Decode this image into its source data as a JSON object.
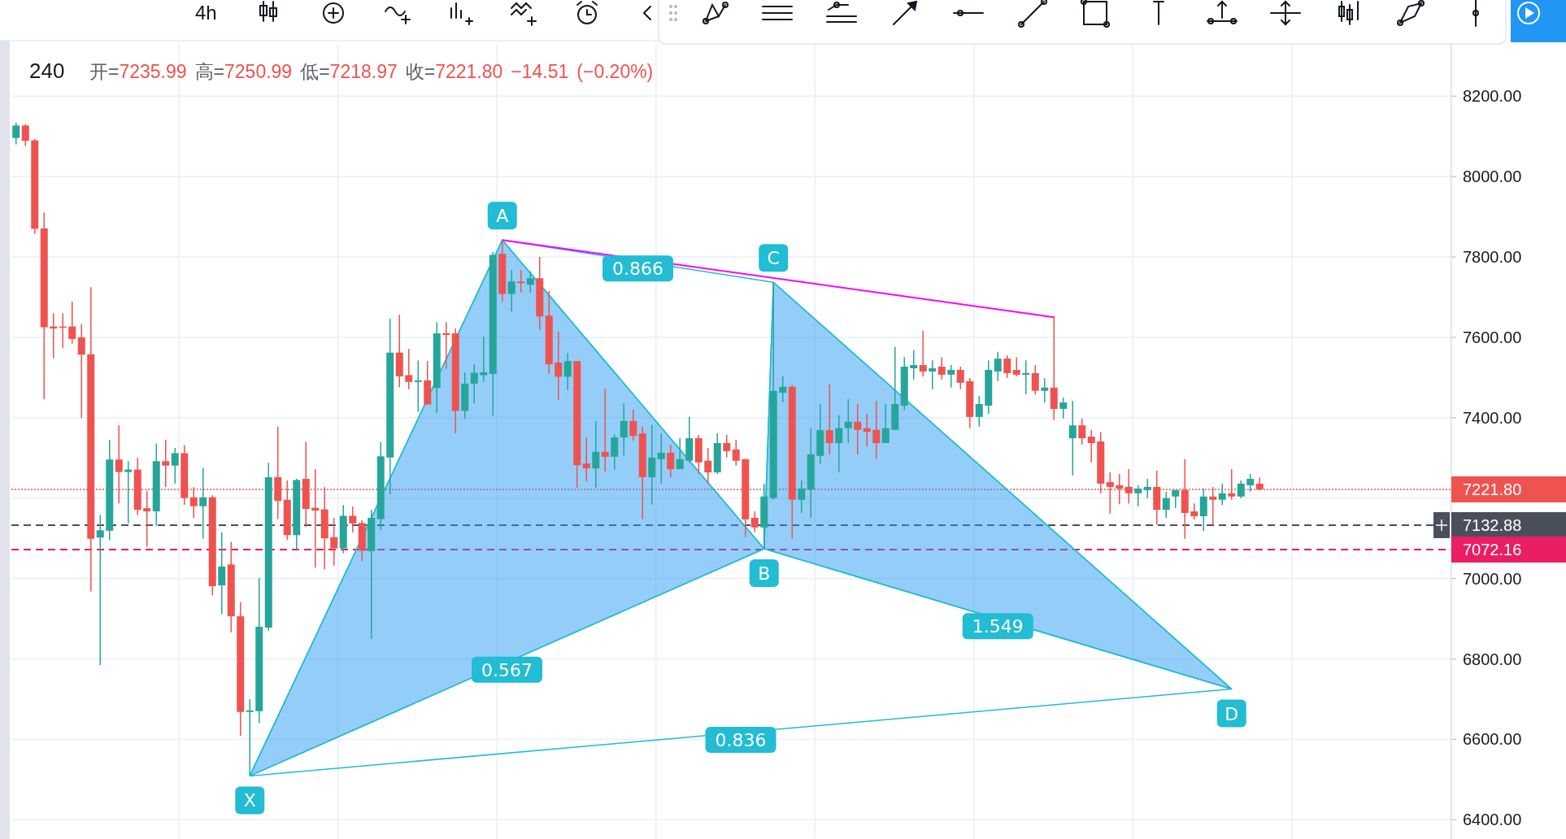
{
  "chart_data": {
    "type": "candlestick",
    "title": "240",
    "subtitle": "开=7235.99 高=7250.99 低=7218.97 收=7221.80 −14.51 (−0.20%)",
    "categories": [
      null,
      null,
      null,
      null,
      null,
      null,
      null,
      null,
      null,
      null,
      null,
      null,
      null,
      null,
      null,
      null,
      null,
      null,
      null,
      null,
      null,
      null,
      null,
      null,
      null,
      null,
      null,
      null,
      null,
      null,
      null,
      null,
      null,
      null,
      null,
      null,
      null,
      null,
      null,
      null,
      null,
      null,
      null,
      null,
      null,
      null,
      null,
      null,
      null,
      null,
      null,
      null,
      null,
      null,
      null,
      null,
      null,
      null,
      null,
      null,
      null,
      null,
      null,
      null,
      null,
      null,
      null,
      null,
      null,
      null,
      null,
      null,
      null,
      null,
      null,
      null,
      null,
      null,
      null,
      null,
      null,
      null,
      null,
      null,
      null,
      null,
      null,
      null,
      null,
      null,
      null,
      null,
      null,
      null,
      null,
      null,
      null,
      null,
      null,
      null,
      null,
      null,
      null,
      null,
      null,
      null,
      null,
      null,
      null,
      null,
      null,
      null,
      null,
      null,
      null,
      null,
      null,
      null,
      null,
      null,
      null,
      null,
      null,
      null,
      null,
      null,
      null,
      null,
      null,
      null,
      null,
      null,
      null,
      null,
      null,
      null,
      null,
      null,
      null,
      null,
      null,
      null,
      null,
      null,
      null,
      null,
      null,
      null,
      null,
      null,
      null,
      null,
      null,
      null
    ],
    "ohlc": [
      [
        8096,
        8134,
        8080,
        8127
      ],
      [
        8127,
        8130,
        8076,
        8089
      ],
      [
        8090,
        8094,
        7857,
        7870
      ],
      [
        7871,
        7911,
        7446,
        7625
      ],
      [
        7627,
        7660,
        7548,
        7622
      ],
      [
        7627,
        7660,
        7573,
        7625
      ],
      [
        7627,
        7689,
        7584,
        7596
      ],
      [
        7600,
        7633,
        7399,
        7557
      ],
      [
        7558,
        7725,
        6968,
        7099
      ],
      [
        7102,
        7158,
        6785,
        7120
      ],
      [
        7119,
        7345,
        7095,
        7296
      ],
      [
        7296,
        7381,
        7187,
        7265
      ],
      [
        7265,
        7292,
        7138,
        7271
      ],
      [
        7271,
        7300,
        7158,
        7171
      ],
      [
        7175,
        7218,
        7079,
        7167
      ],
      [
        7167,
        7336,
        7131,
        7292
      ],
      [
        7292,
        7345,
        7227,
        7281
      ],
      [
        7281,
        7325,
        7236,
        7312
      ],
      [
        7312,
        7332,
        7184,
        7200
      ],
      [
        7202,
        7227,
        7151,
        7180
      ],
      [
        7180,
        7276,
        7099,
        7202
      ],
      [
        7202,
        7207,
        6959,
        6981
      ],
      [
        6983,
        7115,
        6911,
        7030
      ],
      [
        7035,
        7091,
        6866,
        6906
      ],
      [
        6906,
        6941,
        6609,
        6668
      ],
      [
        6668,
        6700,
        6510,
        6672
      ],
      [
        6670,
        7001,
        6640,
        6880
      ],
      [
        6878,
        7288,
        6870,
        7252
      ],
      [
        7252,
        7378,
        7148,
        7193
      ],
      [
        7196,
        7244,
        7096,
        7108
      ],
      [
        7108,
        7248,
        7072,
        7245
      ],
      [
        7248,
        7340,
        7128,
        7173
      ],
      [
        7176,
        7272,
        7027,
        7169
      ],
      [
        7172,
        7228,
        7023,
        7100
      ],
      [
        7103,
        7151,
        7032,
        7075
      ],
      [
        7075,
        7183,
        7063,
        7156
      ],
      [
        7156,
        7179,
        7115,
        7137
      ],
      [
        7138,
        7145,
        7043,
        7069
      ],
      [
        7068,
        7171,
        6850,
        7151
      ],
      [
        7148,
        7340,
        7120,
        7304
      ],
      [
        7301,
        7647,
        7209,
        7562
      ],
      [
        7562,
        7656,
        7476,
        7503
      ],
      [
        7506,
        7571,
        7471,
        7489
      ],
      [
        7489,
        7542,
        7415,
        7493
      ],
      [
        7493,
        7541,
        7433,
        7433
      ],
      [
        7474,
        7638,
        7412,
        7610
      ],
      [
        7610,
        7638,
        7522,
        7606
      ],
      [
        7610,
        7622,
        7361,
        7417
      ],
      [
        7417,
        7513,
        7397,
        7485
      ],
      [
        7485,
        7533,
        7436,
        7512
      ],
      [
        7506,
        7602,
        7489,
        7513
      ],
      [
        7509,
        7812,
        7405,
        7805
      ],
      [
        7808,
        7842,
        7688,
        7708
      ],
      [
        7708,
        7768,
        7664,
        7739
      ],
      [
        7739,
        7768,
        7711,
        7735
      ],
      [
        7731,
        7764,
        7711,
        7747
      ],
      [
        7747,
        7800,
        7618,
        7652
      ],
      [
        7654,
        7715,
        7509,
        7533
      ],
      [
        7537,
        7614,
        7444,
        7502
      ],
      [
        7502,
        7561,
        7469,
        7541
      ],
      [
        7541,
        7541,
        7226,
        7282
      ],
      [
        7286,
        7351,
        7242,
        7274
      ],
      [
        7274,
        7391,
        7226,
        7315
      ],
      [
        7315,
        7472,
        7266,
        7303
      ],
      [
        7303,
        7359,
        7270,
        7351
      ],
      [
        7351,
        7436,
        7306,
        7392
      ],
      [
        7392,
        7420,
        7343,
        7355
      ],
      [
        7361,
        7378,
        7148,
        7252
      ],
      [
        7252,
        7382,
        7185,
        7301
      ],
      [
        7297,
        7361,
        7236,
        7313
      ],
      [
        7313,
        7333,
        7252,
        7272
      ],
      [
        7272,
        7349,
        7272,
        7297
      ],
      [
        7293,
        7402,
        7289,
        7349
      ],
      [
        7349,
        7357,
        7260,
        7289
      ],
      [
        7293,
        7325,
        7236,
        7264
      ],
      [
        7264,
        7361,
        7260,
        7337
      ],
      [
        7337,
        7357,
        7301,
        7317
      ],
      [
        7321,
        7345,
        7281,
        7293
      ],
      [
        7297,
        7297,
        7103,
        7147
      ],
      [
        7151,
        7167,
        7115,
        7127
      ],
      [
        7127,
        7236,
        7074,
        7204
      ],
      [
        7200,
        7737,
        7196,
        7467
      ],
      [
        7462,
        7503,
        7438,
        7477
      ],
      [
        7477,
        7481,
        7099,
        7196
      ],
      [
        7196,
        7244,
        7163,
        7224
      ],
      [
        7221,
        7374,
        7151,
        7309
      ],
      [
        7305,
        7434,
        7285,
        7369
      ],
      [
        7369,
        7483,
        7309,
        7337
      ],
      [
        7337,
        7406,
        7264,
        7374
      ],
      [
        7374,
        7446,
        7337,
        7390
      ],
      [
        7390,
        7434,
        7309,
        7370
      ],
      [
        7374,
        7410,
        7329,
        7365
      ],
      [
        7370,
        7442,
        7297,
        7337
      ],
      [
        7337,
        7434,
        7337,
        7374
      ],
      [
        7370,
        7576,
        7370,
        7434
      ],
      [
        7430,
        7551,
        7418,
        7527
      ],
      [
        7523,
        7568,
        7495,
        7531
      ],
      [
        7531,
        7616,
        7503,
        7515
      ],
      [
        7515,
        7543,
        7471,
        7523
      ],
      [
        7527,
        7551,
        7495,
        7507
      ],
      [
        7507,
        7531,
        7475,
        7519
      ],
      [
        7519,
        7527,
        7471,
        7487
      ],
      [
        7491,
        7499,
        7374,
        7402
      ],
      [
        7402,
        7454,
        7378,
        7434
      ],
      [
        7430,
        7543,
        7410,
        7519
      ],
      [
        7515,
        7564,
        7491,
        7547
      ],
      [
        7547,
        7555,
        7499,
        7511
      ],
      [
        7519,
        7551,
        7503,
        7507
      ],
      [
        7507,
        7543,
        7458,
        7511
      ],
      [
        7511,
        7531,
        7458,
        7467
      ],
      [
        7467,
        7499,
        7438,
        7475
      ],
      [
        7475,
        7653,
        7394,
        7422
      ],
      [
        7422,
        7450,
        7398,
        7438
      ],
      [
        7349,
        7442,
        7256,
        7381
      ],
      [
        7381,
        7398,
        7333,
        7349
      ],
      [
        7353,
        7370,
        7289,
        7337
      ],
      [
        7341,
        7364,
        7212,
        7236
      ],
      [
        7240,
        7264,
        7161,
        7228
      ],
      [
        7232,
        7260,
        7185,
        7224
      ],
      [
        7228,
        7272,
        7187,
        7212
      ],
      [
        7212,
        7232,
        7179,
        7224
      ],
      [
        7220,
        7248,
        7200,
        7228
      ],
      [
        7228,
        7268,
        7134,
        7171
      ],
      [
        7171,
        7216,
        7151,
        7200
      ],
      [
        7204,
        7220,
        7175,
        7220
      ],
      [
        7220,
        7297,
        7099,
        7163
      ],
      [
        7167,
        7187,
        7147,
        7155
      ],
      [
        7155,
        7224,
        7118,
        7204
      ],
      [
        7204,
        7228,
        7134,
        7196
      ],
      [
        7196,
        7236,
        7183,
        7212
      ],
      [
        7212,
        7272,
        7196,
        7204
      ],
      [
        7204,
        7244,
        7200,
        7236
      ],
      [
        7232,
        7260,
        7216,
        7248
      ],
      [
        7235.99,
        7250.99,
        7218.97,
        7221.8
      ],
      null,
      null,
      null,
      null,
      null,
      null,
      null,
      null,
      null,
      null,
      null,
      null,
      null,
      null,
      null,
      null,
      null,
      null,
      null,
      null
    ],
    "series": [
      {
        "type": "area",
        "color": "#2196f3",
        "values": [
          null,
          null,
          null,
          null,
          null,
          null,
          null,
          null,
          null,
          null,
          null,
          null,
          null,
          null,
          null,
          null,
          null,
          null,
          null,
          null,
          null,
          null,
          null,
          null,
          null,
          6509,
          null,
          null,
          null,
          null,
          null,
          null,
          null,
          null,
          null,
          null,
          null,
          null,
          null,
          null,
          null,
          null,
          null,
          null,
          null,
          null,
          null,
          null,
          null,
          null,
          null,
          null,
          7842,
          null,
          null,
          null,
          null,
          null,
          null,
          null,
          null,
          null,
          null,
          null,
          null,
          null,
          null,
          null,
          null,
          null,
          null,
          null,
          null,
          null,
          null,
          null,
          null,
          null,
          null,
          null,
          7074,
          7737,
          null,
          null,
          null,
          null,
          null,
          null,
          null,
          null,
          null,
          null,
          null,
          null,
          null,
          null,
          null,
          null,
          null,
          null,
          null,
          null,
          null,
          null,
          null,
          null,
          null,
          null,
          null,
          null,
          null,
          null,
          null,
          null,
          null,
          null,
          null,
          null,
          null,
          null,
          null,
          null,
          null,
          null,
          null,
          null,
          null,
          null,
          null,
          null,
          6725,
          null,
          null,
          null,
          null,
          null,
          null,
          null,
          null,
          null,
          null,
          null,
          null,
          null,
          null,
          null,
          null,
          null,
          null,
          null,
          null,
          null,
          null,
          null
        ]
      },
      {
        "type": "line",
        "color": "#ff00ff",
        "values": [
          null,
          null,
          null,
          null,
          null,
          null,
          null,
          null,
          null,
          null,
          null,
          null,
          null,
          null,
          null,
          null,
          null,
          null,
          null,
          null,
          null,
          null,
          null,
          null,
          null,
          null,
          null,
          null,
          null,
          null,
          null,
          null,
          null,
          null,
          null,
          null,
          null,
          null,
          null,
          null,
          null,
          null,
          null,
          null,
          null,
          null,
          null,
          null,
          null,
          null,
          null,
          null,
          7842,
          null,
          null,
          null,
          null,
          null,
          null,
          null,
          null,
          null,
          null,
          null,
          null,
          null,
          null,
          null,
          null,
          null,
          null,
          null,
          null,
          null,
          null,
          null,
          null,
          null,
          null,
          null,
          null,
          null,
          null,
          null,
          null,
          null,
          null,
          null,
          null,
          null,
          null,
          null,
          null,
          null,
          null,
          null,
          null,
          null,
          null,
          null,
          null,
          null,
          null,
          null,
          null,
          null,
          null,
          null,
          null,
          null,
          null,
          7650,
          null,
          null,
          null,
          null,
          null,
          null,
          null,
          null,
          null,
          null,
          null,
          null,
          null,
          null,
          null,
          null,
          null,
          null,
          null,
          null,
          null,
          null,
          null,
          null,
          null,
          null,
          null,
          null,
          null,
          null,
          null,
          null,
          null,
          null,
          null,
          null,
          null,
          null,
          null,
          null,
          null,
          null
        ]
      }
    ],
    "ylim": [
      6350,
      8330
    ],
    "yticks": [
      {
        "value": 6400,
        "label": "6400.00"
      },
      {
        "value": 6600,
        "label": "6600.00"
      },
      {
        "value": 6800,
        "label": "6800.00"
      },
      {
        "value": 7000,
        "label": "7000.00"
      },
      {
        "value": 7200,
        "label": null
      },
      {
        "value": 7400,
        "label": "7400.00"
      },
      {
        "value": 7600,
        "label": "7600.00"
      },
      {
        "value": 7800,
        "label": "7800.00"
      },
      {
        "value": 8000,
        "label": "8000.00"
      },
      {
        "value": 8200,
        "label": "8200.00"
      }
    ],
    "ref_lines": [
      {
        "axis": "y",
        "value": 7221.8,
        "label": "7221.80",
        "color": "#ef5350",
        "line_style": "dotted"
      },
      {
        "axis": "y",
        "value": 7132.88,
        "label": "7132.88",
        "color": "#4a4f5c",
        "line_style": "dashed"
      },
      {
        "axis": "y",
        "value": 7072.16,
        "label": "7072.16",
        "color": "#e91e63",
        "line_style": "dashed"
      }
    ],
    "annotations": [
      {
        "text": "X",
        "y": 6509
      },
      {
        "text": "A",
        "y": 7842
      },
      {
        "text": "B",
        "y": 7074
      },
      {
        "text": "C",
        "y": 7737
      },
      {
        "text": "D",
        "y": 6725
      },
      "0.567",
      "0.866",
      "1.549",
      "0.836",
      "4h"
    ],
    "grid": true,
    "tick_labels": "y"
  }
}
